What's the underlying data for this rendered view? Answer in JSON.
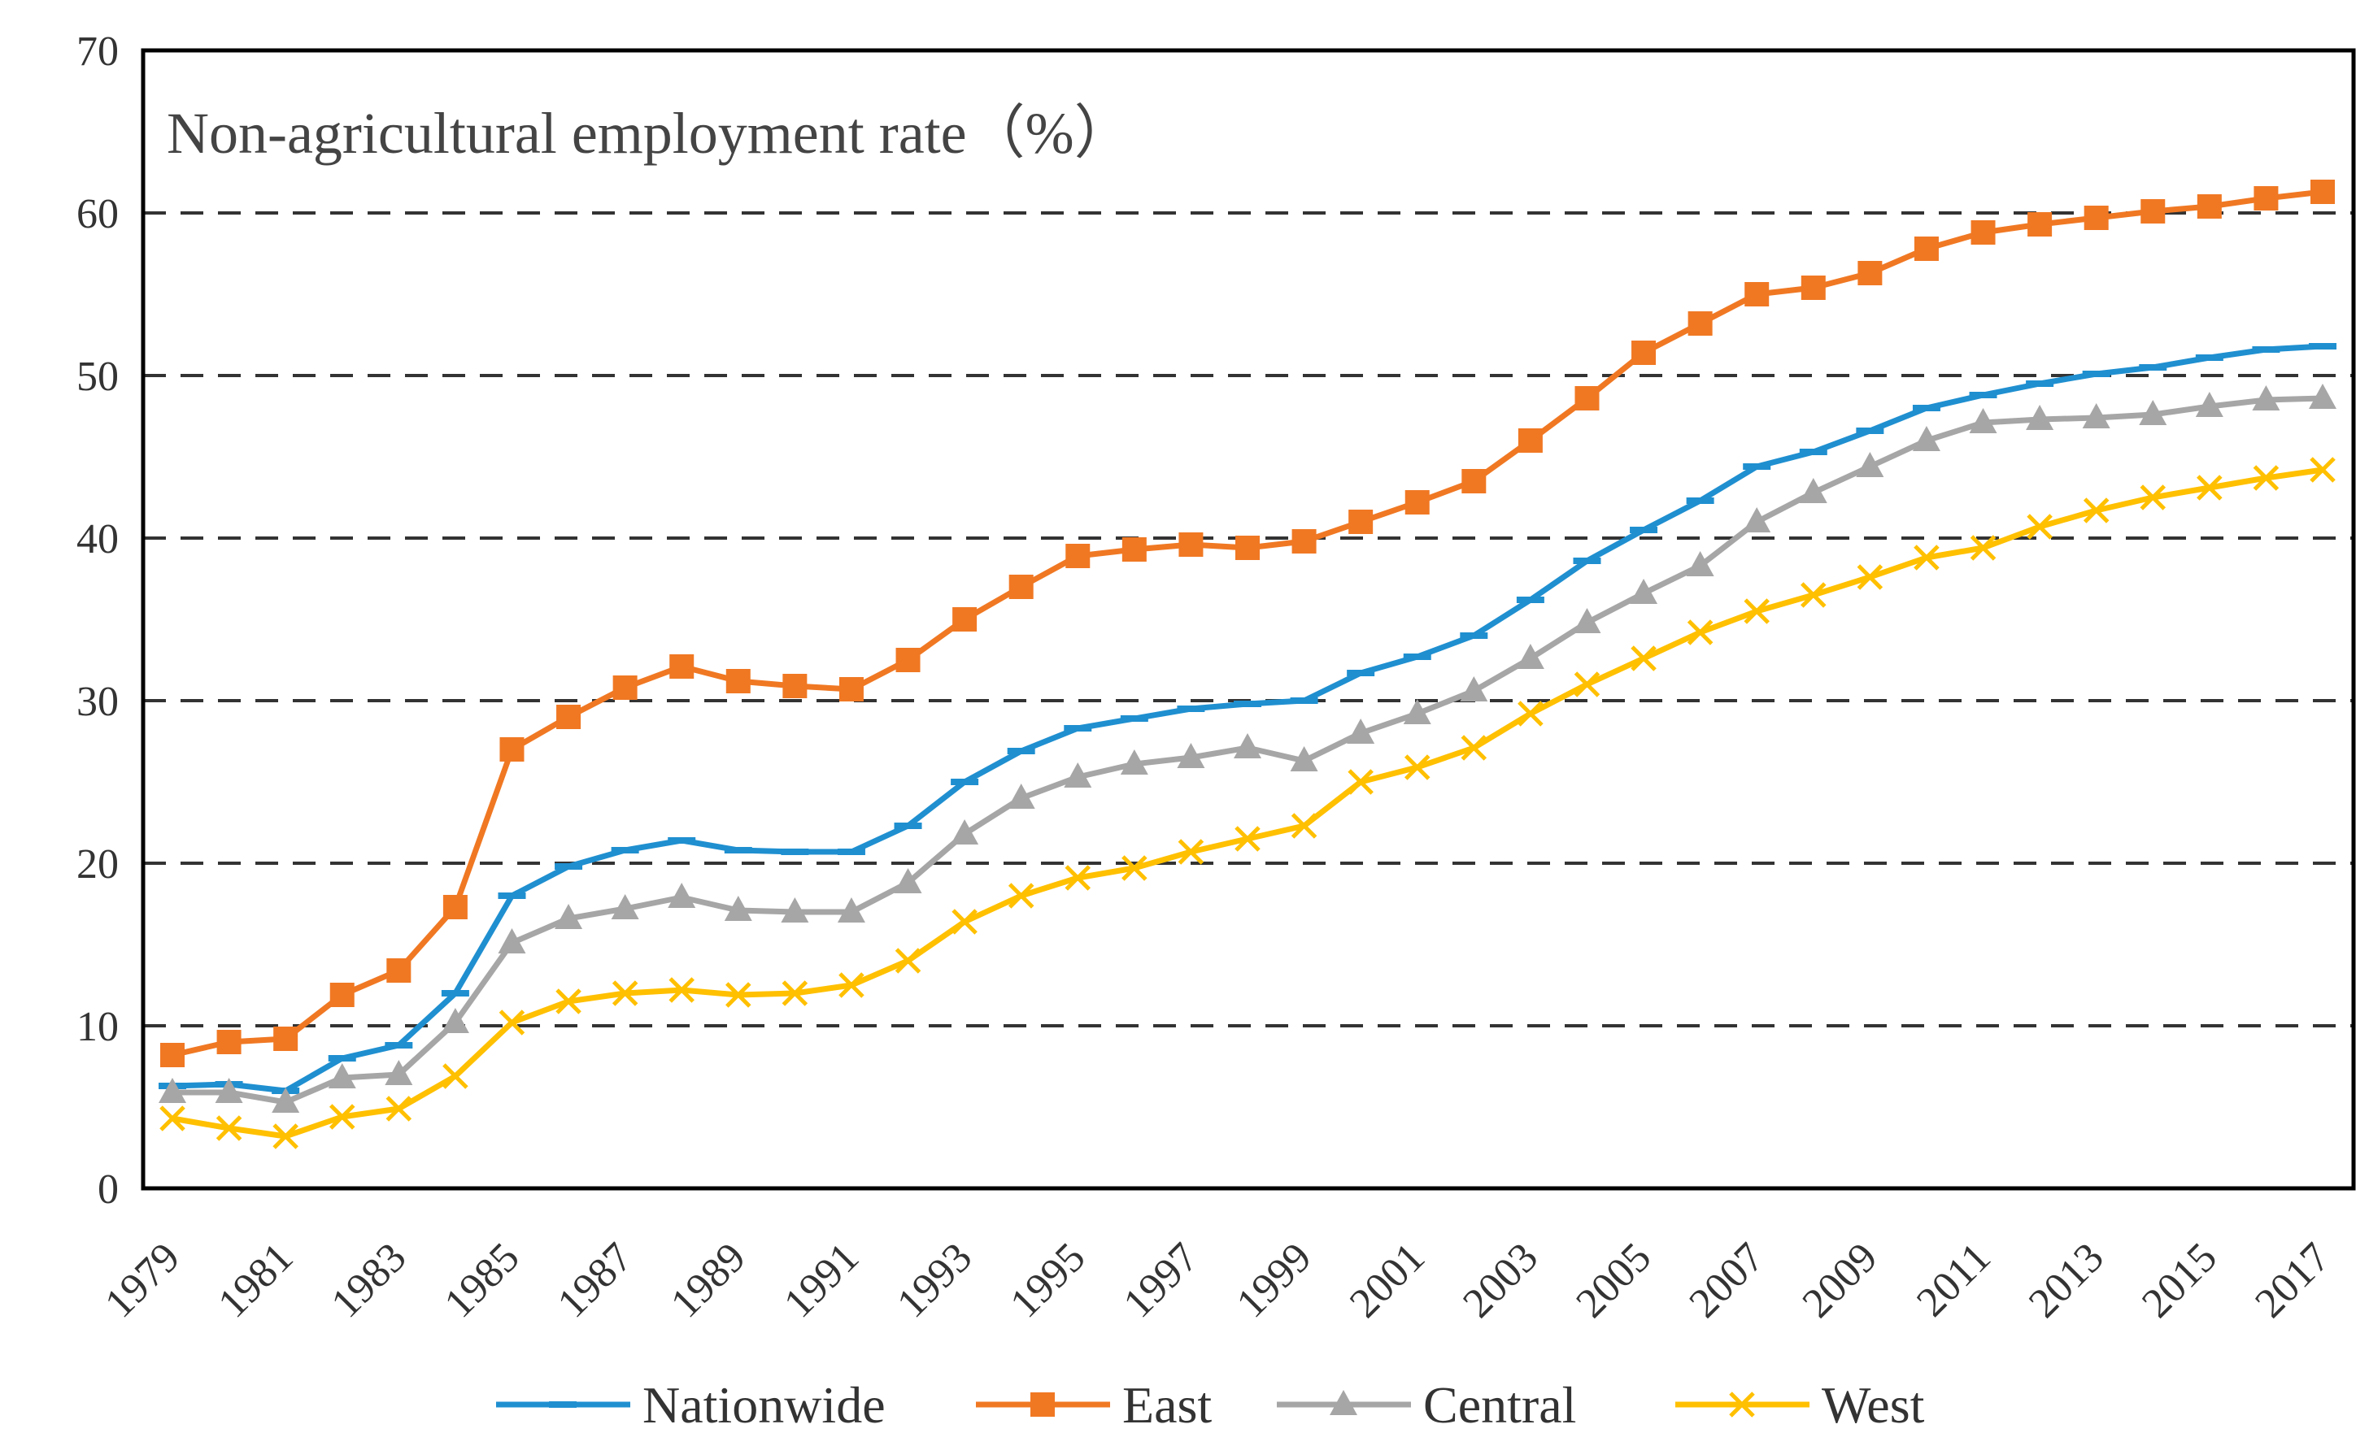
{
  "chart_data": {
    "type": "line",
    "title": "Non-agricultural employment rate（%）",
    "xlabel": "",
    "ylabel": "",
    "ylim": [
      0,
      70
    ],
    "yticks": [
      "0",
      "10",
      "20",
      "30",
      "40",
      "50",
      "60",
      "70"
    ],
    "grid": "horizontal dashed",
    "legend_position": "bottom",
    "x": [
      1979,
      1980,
      1981,
      1982,
      1983,
      1984,
      1985,
      1986,
      1987,
      1988,
      1989,
      1990,
      1991,
      1992,
      1993,
      1994,
      1995,
      1996,
      1997,
      1998,
      1999,
      2000,
      2001,
      2002,
      2003,
      2004,
      2005,
      2006,
      2007,
      2008,
      2009,
      2010,
      2011,
      2012,
      2013,
      2014,
      2015,
      2016,
      2017
    ],
    "xtick_labels": [
      "1979",
      "1981",
      "1983",
      "1985",
      "1987",
      "1989",
      "1991",
      "1993",
      "1995",
      "1997",
      "1999",
      "2001",
      "2003",
      "2005",
      "2007",
      "2009",
      "2011",
      "2013",
      "2015",
      "2017"
    ],
    "series": [
      {
        "name": "Nationwide",
        "color": "#1f8fd0",
        "marker": "dash",
        "values": [
          6.3,
          6.4,
          6.0,
          8.0,
          8.8,
          12.0,
          18.0,
          19.8,
          20.8,
          21.4,
          20.8,
          20.7,
          20.7,
          22.3,
          25.0,
          26.9,
          28.3,
          28.9,
          29.5,
          29.8,
          30.0,
          31.7,
          32.7,
          34.0,
          36.2,
          38.6,
          40.5,
          42.3,
          44.4,
          45.3,
          46.6,
          48.0,
          48.8,
          49.5,
          50.1,
          50.5,
          51.1,
          51.6,
          51.8
        ]
      },
      {
        "name": "East",
        "color": "#f07823",
        "marker": "square",
        "values": [
          8.2,
          9.0,
          9.2,
          11.9,
          13.4,
          17.3,
          27.0,
          29.0,
          30.8,
          32.1,
          31.2,
          30.9,
          30.7,
          32.5,
          35.0,
          37.0,
          38.9,
          39.3,
          39.6,
          39.4,
          39.8,
          41.0,
          42.2,
          43.5,
          46.0,
          48.6,
          51.4,
          53.2,
          55.0,
          55.4,
          56.3,
          57.8,
          58.8,
          59.3,
          59.7,
          60.1,
          60.4,
          60.9,
          61.3
        ]
      },
      {
        "name": "Central",
        "color": "#a6a6a6",
        "marker": "triangle",
        "values": [
          5.9,
          5.9,
          5.3,
          6.8,
          7.0,
          10.2,
          15.1,
          16.6,
          17.2,
          17.9,
          17.1,
          17.0,
          17.0,
          18.8,
          21.8,
          24.0,
          25.3,
          26.1,
          26.5,
          27.1,
          26.3,
          28.0,
          29.2,
          30.6,
          32.6,
          34.8,
          36.6,
          38.3,
          41.0,
          42.8,
          44.4,
          46.0,
          47.1,
          47.3,
          47.4,
          47.6,
          48.1,
          48.5,
          48.6
        ]
      },
      {
        "name": "West",
        "color": "#ffc000",
        "marker": "x",
        "values": [
          4.3,
          3.7,
          3.2,
          4.4,
          4.9,
          6.9,
          10.2,
          11.5,
          12.0,
          12.2,
          11.9,
          12.0,
          12.5,
          14.0,
          16.4,
          18.0,
          19.1,
          19.7,
          20.7,
          21.5,
          22.3,
          25.0,
          25.9,
          27.1,
          29.2,
          31.0,
          32.6,
          34.2,
          35.5,
          36.5,
          37.6,
          38.8,
          39.4,
          40.7,
          41.7,
          42.5,
          43.1,
          43.7,
          44.2
        ]
      }
    ]
  }
}
